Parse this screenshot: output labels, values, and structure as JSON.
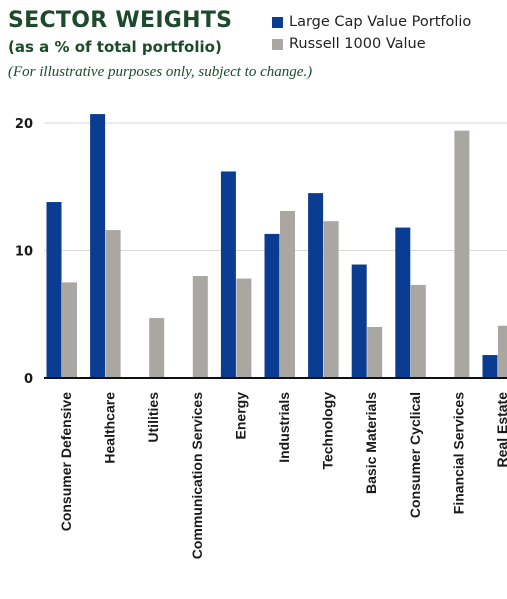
{
  "header": {
    "title": "SECTOR WEIGHTS",
    "subtitle": "(as a % of total portfolio)",
    "note": "(For illustrative purposes only, subject to change.)"
  },
  "chart_data": {
    "type": "bar",
    "categories": [
      "Consumer Defensive",
      "Healthcare",
      "Utilities",
      "Communication Services",
      "Energy",
      "Industrials",
      "Technology",
      "Basic Materials",
      "Consumer Cyclical",
      "Financial Services",
      "Real Estate"
    ],
    "series": [
      {
        "name": "Large Cap Value Portfolio",
        "color": "#0a3d91",
        "values": [
          13.8,
          20.7,
          0,
          0,
          16.2,
          11.3,
          14.5,
          8.9,
          11.8,
          0,
          1.8
        ]
      },
      {
        "name": "Russell 1000 Value",
        "color": "#aaa7a2",
        "values": [
          7.5,
          11.6,
          4.7,
          8.0,
          7.8,
          13.1,
          12.3,
          4.0,
          7.3,
          19.4,
          4.1
        ]
      }
    ],
    "yticks": [
      "0",
      "10",
      "20"
    ],
    "ylim": [
      0,
      22
    ],
    "grid": true,
    "legend_position": "top-right"
  }
}
